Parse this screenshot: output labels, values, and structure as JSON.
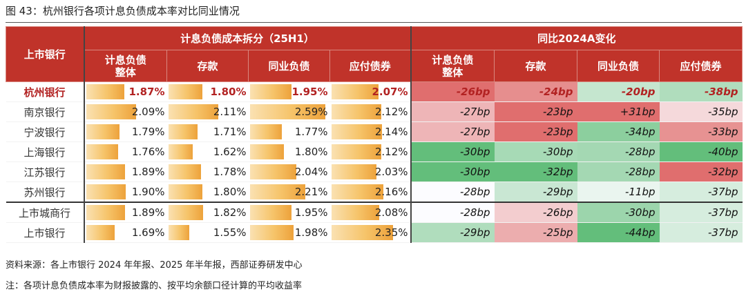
{
  "title": "图 43：杭州银行各项计息负债成本率对比同业情况",
  "header": {
    "row_head": "上市银行",
    "group_cost": "计息负债成本拆分（25H1）",
    "group_change": "同比2024A变化",
    "cost_cols": [
      "计息负债\n整体",
      "存款",
      "同业负债",
      "应付债券"
    ],
    "change_cols": [
      "计息负债\n整体",
      "存款",
      "同业负债",
      "应付债券"
    ]
  },
  "rows": [
    {
      "bank": "杭州银行",
      "cost": [
        "1.87%",
        "1.80%",
        "1.95%",
        "2.07%"
      ],
      "cost_num": [
        1.87,
        1.8,
        1.95,
        2.07
      ],
      "change": [
        "-26bp",
        "-24bp",
        "-20bp",
        "-38bp"
      ],
      "change_num": [
        -26,
        -24,
        -20,
        -38
      ]
    },
    {
      "bank": "南京银行",
      "cost": [
        "2.09%",
        "2.11%",
        "2.59%",
        "2.12%"
      ],
      "cost_num": [
        2.09,
        2.11,
        2.59,
        2.12
      ],
      "change": [
        "-27bp",
        "-23bp",
        "+31bp",
        "-35bp"
      ],
      "change_num": [
        -27,
        -23,
        31,
        -35
      ]
    },
    {
      "bank": "宁波银行",
      "cost": [
        "1.79%",
        "1.71%",
        "1.77%",
        "2.14%"
      ],
      "cost_num": [
        1.79,
        1.71,
        1.77,
        2.14
      ],
      "change": [
        "-27bp",
        "-23bp",
        "-34bp",
        "-33bp"
      ],
      "change_num": [
        -27,
        -23,
        -34,
        -33
      ]
    },
    {
      "bank": "上海银行",
      "cost": [
        "1.76%",
        "1.62%",
        "1.80%",
        "2.12%"
      ],
      "cost_num": [
        1.76,
        1.62,
        1.8,
        2.12
      ],
      "change": [
        "-30bp",
        "-30bp",
        "-28bp",
        "-40bp"
      ],
      "change_num": [
        -30,
        -30,
        -28,
        -40
      ]
    },
    {
      "bank": "江苏银行",
      "cost": [
        "1.89%",
        "1.78%",
        "2.04%",
        "2.03%"
      ],
      "cost_num": [
        1.89,
        1.78,
        2.04,
        2.03
      ],
      "change": [
        "-30bp",
        "-32bp",
        "-28bp",
        "-32bp"
      ],
      "change_num": [
        -30,
        -32,
        -28,
        -32
      ]
    },
    {
      "bank": "苏州银行",
      "cost": [
        "1.90%",
        "1.80%",
        "2.21%",
        "2.16%"
      ],
      "cost_num": [
        1.9,
        1.8,
        2.21,
        2.16
      ],
      "change": [
        "-28bp",
        "-29bp",
        "-11bp",
        "-37bp"
      ],
      "change_num": [
        -28,
        -29,
        -11,
        -37
      ]
    },
    {
      "bank": "上市城商行",
      "cost": [
        "1.89%",
        "1.82%",
        "1.95%",
        "2.08%"
      ],
      "cost_num": [
        1.89,
        1.82,
        1.95,
        2.08
      ],
      "change": [
        "-28bp",
        "-26bp",
        "-30bp",
        "-37bp"
      ],
      "change_num": [
        -28,
        -26,
        -30,
        -37
      ]
    },
    {
      "bank": "上市银行",
      "cost": [
        "1.69%",
        "1.55%",
        "1.98%",
        "2.35%"
      ],
      "cost_num": [
        1.69,
        1.55,
        1.98,
        2.35
      ],
      "change": [
        "-29bp",
        "-25bp",
        "-44bp",
        "-37bp"
      ],
      "change_num": [
        -29,
        -25,
        -44,
        -37
      ]
    }
  ],
  "footnotes": {
    "source": "资料来源：各上市银行 2024 年年报、2025 年半年报，西部证券研发中心",
    "note": "注：各项计息负债成本率为财报披露的、按平均余额口径计算的平均收益率"
  },
  "colors": {
    "header_red": "#c0332a",
    "bar_gold": "#eda23b",
    "scale_negative": "#5aaf5a",
    "scale_positive": "#e06c6c"
  }
}
